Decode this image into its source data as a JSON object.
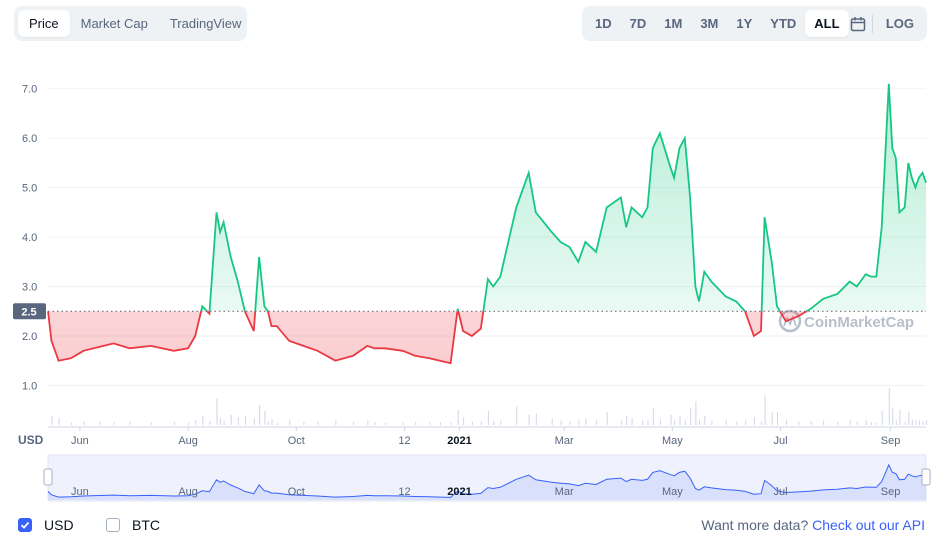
{
  "tabs": {
    "left": [
      {
        "label": "Price",
        "active": true
      },
      {
        "label": "Market Cap",
        "active": false
      },
      {
        "label": "TradingView",
        "active": false
      }
    ],
    "right": [
      {
        "label": "1D",
        "active": false
      },
      {
        "label": "7D",
        "active": false
      },
      {
        "label": "1M",
        "active": false
      },
      {
        "label": "3M",
        "active": false
      },
      {
        "label": "1Y",
        "active": false
      },
      {
        "label": "YTD",
        "active": false
      },
      {
        "label": "ALL",
        "active": true
      }
    ],
    "calendar_icon": "calendar-icon",
    "log_label": "LOG"
  },
  "chart_data": {
    "type": "area",
    "ylabel": "USD",
    "yticks": [
      "1.0",
      "2.0",
      "3.0",
      "4.0",
      "5.0",
      "6.0",
      "7.0"
    ],
    "ylim": [
      0.2,
      7.5
    ],
    "reference_label": "2.5",
    "reference_value": 2.5,
    "x_ticks": [
      "Jun",
      "Aug",
      "Oct",
      "12",
      "2021",
      "Mar",
      "May",
      "Jul",
      "Sep"
    ],
    "x_range": [
      "2020-05-14",
      "2021-09-21"
    ],
    "watermark": "CoinMarketCap",
    "above_color": "#16c784",
    "below_color": "#ea3943",
    "navigator_color": "#3861fb",
    "series": [
      {
        "x": [
          "2020-05-14",
          "2020-05-16",
          "2020-05-20",
          "2020-05-27",
          "2020-06-03",
          "2020-06-12",
          "2020-06-20",
          "2020-06-29",
          "2020-07-11",
          "2020-07-24",
          "2020-08-01",
          "2020-08-05",
          "2020-08-09",
          "2020-08-13",
          "2020-08-17",
          "2020-08-19",
          "2020-08-21",
          "2020-08-25",
          "2020-08-29",
          "2020-09-02",
          "2020-09-07",
          "2020-09-10",
          "2020-09-13",
          "2020-09-15",
          "2020-09-17",
          "2020-09-20",
          "2020-09-27",
          "2020-10-05",
          "2020-10-13",
          "2020-10-23",
          "2020-11-02",
          "2020-11-10",
          "2020-11-14",
          "2020-11-20",
          "2020-11-30",
          "2020-12-07",
          "2020-12-15",
          "2020-12-21",
          "2020-12-27",
          "2020-12-31",
          "2021-01-03",
          "2021-01-08",
          "2021-01-13",
          "2021-01-17",
          "2021-01-20",
          "2021-01-24",
          "2021-02-02",
          "2021-02-09",
          "2021-02-13",
          "2021-02-22",
          "2021-02-27",
          "2021-03-04",
          "2021-03-09",
          "2021-03-13",
          "2021-03-19",
          "2021-03-25",
          "2021-04-02",
          "2021-04-05",
          "2021-04-08",
          "2021-04-14",
          "2021-04-17",
          "2021-04-20",
          "2021-04-24",
          "2021-04-30",
          "2021-05-02",
          "2021-05-05",
          "2021-05-08",
          "2021-05-11",
          "2021-05-14",
          "2021-05-16",
          "2021-05-19",
          "2021-05-23",
          "2021-05-31",
          "2021-06-06",
          "2021-06-11",
          "2021-06-16",
          "2021-06-20",
          "2021-06-22",
          "2021-06-26",
          "2021-06-29",
          "2021-07-04",
          "2021-07-11",
          "2021-07-18",
          "2021-07-25",
          "2021-08-02",
          "2021-08-09",
          "2021-08-13",
          "2021-08-18",
          "2021-08-21",
          "2021-08-24",
          "2021-08-27",
          "2021-08-31",
          "2021-09-02",
          "2021-09-04",
          "2021-09-06",
          "2021-09-09",
          "2021-09-11",
          "2021-09-13",
          "2021-09-15",
          "2021-09-17",
          "2021-09-19",
          "2021-09-21"
        ],
        "values": [
          2.5,
          1.9,
          1.5,
          1.55,
          1.7,
          1.78,
          1.85,
          1.75,
          1.8,
          1.7,
          1.75,
          2.0,
          2.6,
          2.45,
          4.5,
          4.1,
          4.3,
          3.6,
          3.1,
          2.5,
          2.1,
          3.6,
          2.6,
          2.5,
          2.2,
          2.2,
          1.9,
          1.8,
          1.7,
          1.5,
          1.6,
          1.8,
          1.75,
          1.75,
          1.7,
          1.6,
          1.55,
          1.5,
          1.45,
          2.55,
          2.1,
          2.0,
          2.15,
          3.15,
          3.0,
          3.2,
          4.6,
          5.3,
          4.5,
          4.1,
          3.9,
          3.8,
          3.5,
          3.9,
          3.7,
          4.6,
          4.8,
          4.2,
          4.6,
          4.4,
          4.6,
          5.8,
          6.1,
          5.4,
          5.2,
          5.8,
          6.0,
          4.8,
          3.0,
          2.7,
          3.3,
          3.1,
          2.8,
          2.7,
          2.5,
          2.0,
          2.1,
          4.4,
          3.5,
          2.6,
          2.3,
          2.4,
          2.55,
          2.75,
          2.85,
          3.1,
          3.0,
          3.25,
          3.2,
          3.2,
          4.2,
          7.1,
          5.8,
          5.6,
          4.5,
          4.6,
          5.5,
          5.2,
          5.0,
          5.2,
          5.3,
          5.1
        ]
      }
    ]
  },
  "legend": {
    "usd_label": "USD",
    "usd_checked": true,
    "btc_label": "BTC",
    "btc_checked": false
  },
  "api_text": "Want more data?",
  "api_link": "Check out our API"
}
